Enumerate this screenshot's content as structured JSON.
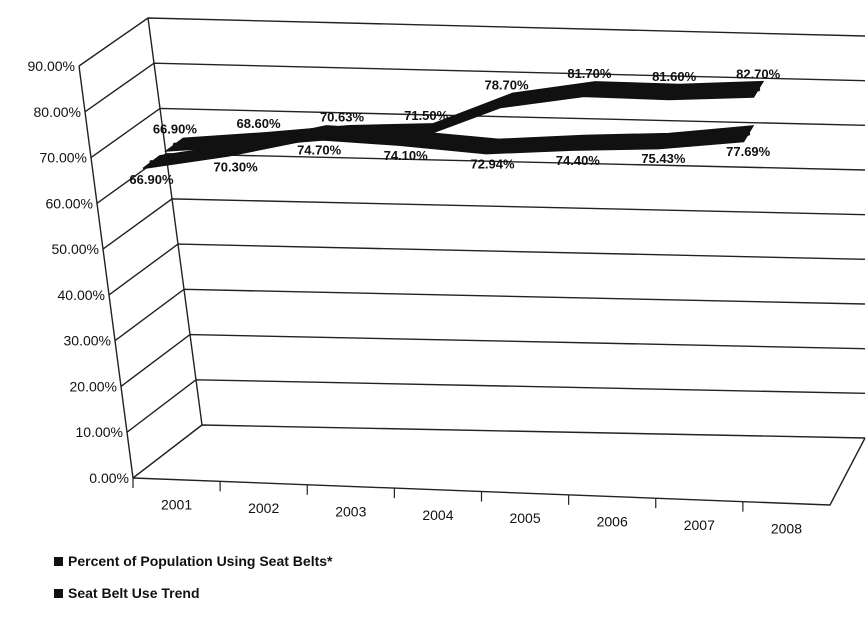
{
  "chart_data": {
    "type": "line",
    "categories": [
      "2001",
      "2002",
      "2003",
      "2004",
      "2005",
      "2006",
      "2007",
      "2008"
    ],
    "y_ticks": [
      "0.00%",
      "10.00%",
      "20.00%",
      "30.00%",
      "40.00%",
      "50.00%",
      "60.00%",
      "70.00%",
      "80.00%",
      "90.00%"
    ],
    "ylim": [
      0,
      90
    ],
    "series": [
      {
        "name": "Percent of Population Using Seat Belts*",
        "values": [
          66.9,
          68.6,
          70.63,
          71.5,
          78.7,
          81.7,
          81.6,
          82.7
        ],
        "labels": [
          "66.90%",
          "68.60%",
          "70.63%",
          "71.50%",
          "78.70%",
          "81.70%",
          "81.60%",
          "82.70%"
        ]
      },
      {
        "name": "Seat Belt Use Trend",
        "values": [
          66.9,
          70.3,
          74.7,
          74.1,
          72.94,
          74.4,
          75.43,
          77.69
        ],
        "labels": [
          "66.90%",
          "70.30%",
          "74.70%",
          "74.10%",
          "72.94%",
          "74.40%",
          "75.43%",
          "77.69%"
        ]
      }
    ],
    "colors": {
      "series": "#111111",
      "grid": "#222222"
    }
  }
}
